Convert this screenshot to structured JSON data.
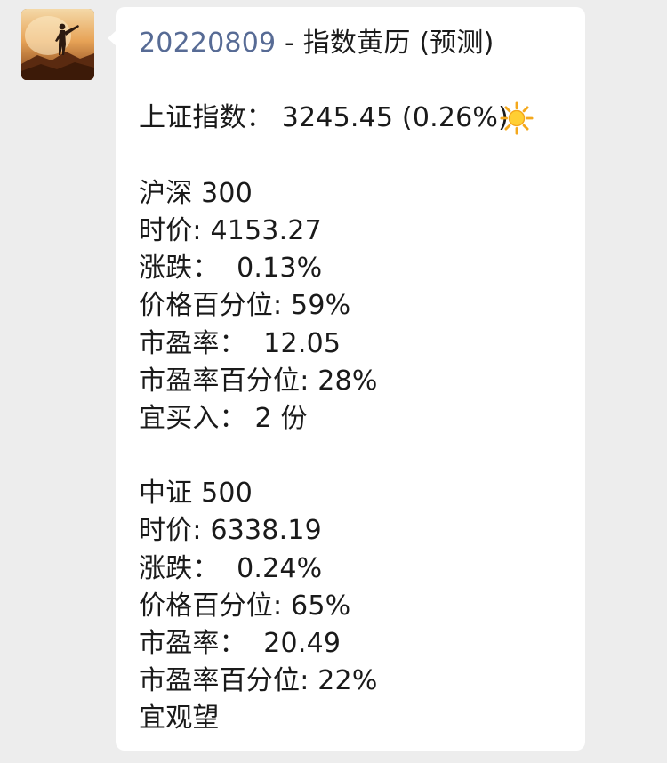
{
  "message": {
    "date": "20220809",
    "title_rest": " - 指数黄历 (预测)",
    "weather_icon": "sun-icon",
    "sh_index": "上证指数： 3245.45 (0.26%)",
    "hs300": {
      "name": "沪深 300",
      "price": "时价: 4153.27",
      "change": "涨跌：  0.13%",
      "price_pct": "价格百分位: 59%",
      "pe": "市盈率：  12.05",
      "pe_pct": "市盈率百分位: 28%",
      "advice": "宜买入： 2 份"
    },
    "zz500": {
      "name": "中证 500",
      "price": "时价: 6338.19",
      "change": "涨跌：  0.24%",
      "price_pct": "价格百分位: 65%",
      "pe": "市盈率：  20.49",
      "pe_pct": "市盈率百分位: 22%",
      "advice": "宜观望"
    }
  },
  "colors": {
    "background": "#ededed",
    "bubble": "#ffffff",
    "link": "#576b95",
    "text": "#1a1a1a"
  }
}
